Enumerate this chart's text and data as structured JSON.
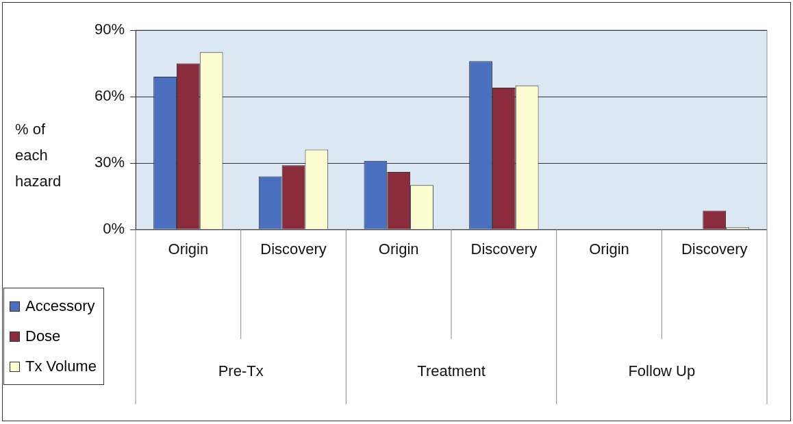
{
  "chart_data": {
    "type": "bar",
    "ylabel": "% of each hazard",
    "categories": [
      "Origin",
      "Discovery",
      "Origin",
      "Discovery",
      "Origin",
      "Discovery"
    ],
    "annotations": [
      "Pre-Tx",
      "Treatment",
      "Follow Up"
    ],
    "series": [
      {
        "name": "Accessory",
        "color": "#4a6fbf",
        "values": [
          69,
          24,
          31,
          76,
          0,
          0
        ]
      },
      {
        "name": "Dose",
        "color": "#8b2c3c",
        "values": [
          75,
          29,
          26,
          64,
          0,
          8.5
        ]
      },
      {
        "name": "Tx Volume",
        "color": "#fdfbd0",
        "values": [
          80,
          36,
          20,
          65,
          0,
          1
        ]
      }
    ],
    "ylim": [
      0,
      90
    ],
    "yticks": [
      {
        "value": 0,
        "label": "0%"
      },
      {
        "value": 30,
        "label": "30%"
      },
      {
        "value": 60,
        "label": "60%"
      },
      {
        "value": 90,
        "label": "90%"
      }
    ],
    "grid": "y",
    "legend": "bottom left"
  }
}
